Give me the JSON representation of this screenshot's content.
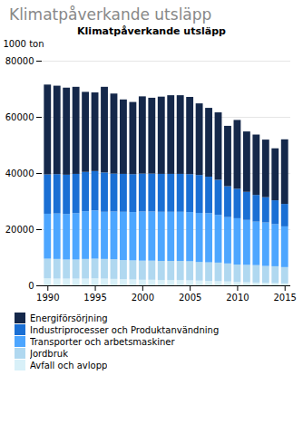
{
  "chart_data": {
    "type": "bar",
    "stacked": true,
    "title": "Klimatpåverkande utsläpp",
    "subtitle": "Klimatpåverkande utsläpp",
    "ylabel": "1000 ton",
    "x": [
      1990,
      1991,
      1992,
      1993,
      1994,
      1995,
      1996,
      1997,
      1998,
      1999,
      2000,
      2001,
      2002,
      2003,
      2004,
      2005,
      2006,
      2007,
      2008,
      2009,
      2010,
      2011,
      2012,
      2013,
      2014,
      2015
    ],
    "xlim": [
      1989.4,
      2015.6
    ],
    "xticks": [
      1990,
      1995,
      2000,
      2005,
      2010,
      2015
    ],
    "ylim": [
      0,
      80000
    ],
    "yticks": [
      0,
      20000,
      40000,
      60000,
      80000
    ],
    "grid": true,
    "legend": "bottom",
    "series": [
      {
        "name": "Avfall och avlopp",
        "color": "#d8f0f8",
        "values": [
          2500,
          2400,
          2400,
          2400,
          2400,
          2500,
          2400,
          2300,
          2200,
          2100,
          2000,
          2000,
          1900,
          1900,
          1900,
          1800,
          1700,
          1600,
          1500,
          1400,
          1200,
          1100,
          1000,
          900,
          800,
          700
        ]
      },
      {
        "name": "Jordbruk",
        "color": "#b0d8f0",
        "values": [
          7000,
          7000,
          6800,
          6800,
          7000,
          7000,
          7000,
          7000,
          6800,
          6800,
          6800,
          6800,
          6800,
          6800,
          6800,
          6800,
          6600,
          6600,
          6600,
          6400,
          6200,
          6200,
          6200,
          6000,
          6000,
          5800
        ]
      },
      {
        "name": "Transporter och arbetsmaskiner",
        "color": "#4da6ff",
        "values": [
          16000,
          16200,
          16200,
          16500,
          17000,
          17200,
          16800,
          17000,
          17200,
          17200,
          17500,
          17500,
          17500,
          17500,
          17500,
          17500,
          17500,
          17500,
          17000,
          16500,
          16500,
          16000,
          15500,
          15500,
          15000,
          14500
        ]
      },
      {
        "name": "Industriprocesser och Produktanvändning",
        "color": "#1a6fd4",
        "values": [
          14000,
          14000,
          14000,
          14000,
          14000,
          14000,
          14000,
          13500,
          13500,
          13500,
          13500,
          13500,
          13500,
          13500,
          13500,
          13500,
          13500,
          13000,
          12500,
          11000,
          10500,
          10000,
          9500,
          9000,
          8500,
          8000
        ]
      },
      {
        "name": "Energiförsörjning",
        "color": "#15284a",
        "values": [
          32000,
          31500,
          31000,
          31000,
          28500,
          28000,
          30500,
          28500,
          26500,
          25700,
          27500,
          27000,
          27500,
          28000,
          28000,
          27500,
          25500,
          24500,
          24000,
          21500,
          24500,
          21500,
          21500,
          20500,
          18500,
          23000
        ]
      }
    ]
  }
}
